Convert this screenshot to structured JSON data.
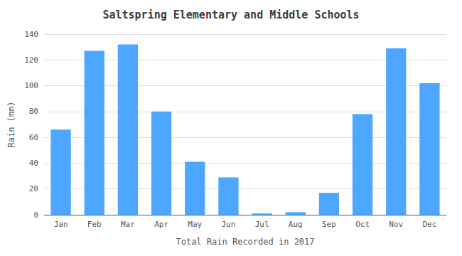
{
  "chart_data": {
    "type": "bar",
    "title": "Saltspring Elementary and Middle Schools",
    "xlabel": "Total Rain Recorded in 2017",
    "ylabel": "Rain (mm)",
    "categories": [
      "Jan",
      "Feb",
      "Mar",
      "Apr",
      "May",
      "Jun",
      "Jul",
      "Aug",
      "Sep",
      "Oct",
      "Nov",
      "Dec"
    ],
    "values": [
      66,
      127,
      132,
      80,
      41,
      29,
      1,
      2,
      17,
      78,
      129,
      102
    ],
    "color": "#4da6ff",
    "ylim": [
      0,
      140
    ],
    "yticks": [
      0,
      20,
      40,
      60,
      80,
      100,
      120,
      140
    ],
    "grid": true
  }
}
